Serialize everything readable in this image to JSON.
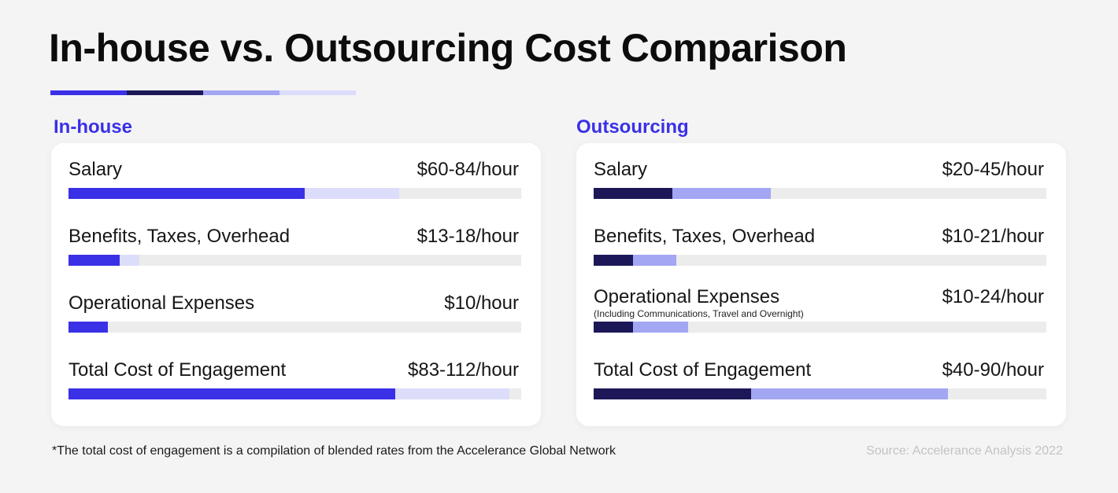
{
  "title": "In-house vs. Outsourcing Cost Comparison",
  "colors": {
    "inhouse_low": "#3a30e6",
    "inhouse_high": "#dcdcfb",
    "outsourcing_low": "#1c1858",
    "outsourcing_high": "#a3a6f3",
    "heading": "#3a30e6",
    "track": "#ececec",
    "rule": [
      "#3a30e6",
      "#1c1858",
      "#a3a6f3",
      "#dcdcfb"
    ]
  },
  "chart_data": [
    {
      "type": "bar",
      "panel": "In-house",
      "scale_max": 115,
      "categories": [
        "Salary",
        "Benefits, Taxes, Overhead",
        "Operational Expenses",
        "Total Cost of Engagement"
      ],
      "labels": [
        "$60-84/hour",
        "$13-18/hour",
        "$10/hour",
        "$83-112/hour"
      ],
      "notes": [
        "",
        "",
        "",
        ""
      ],
      "low": [
        60,
        13,
        10,
        83
      ],
      "high": [
        84,
        18,
        10,
        112
      ]
    },
    {
      "type": "bar",
      "panel": "Outsourcing",
      "scale_max": 115,
      "categories": [
        "Salary",
        "Benefits, Taxes, Overhead",
        "Operational Expenses",
        "Total Cost of Engagement"
      ],
      "labels": [
        "$20-45/hour",
        "$10-21/hour",
        "$10-24/hour",
        "$40-90/hour"
      ],
      "notes": [
        "",
        "",
        "(Including Communications, Travel and Overnight)",
        ""
      ],
      "low": [
        20,
        10,
        10,
        40
      ],
      "high": [
        45,
        21,
        24,
        90
      ]
    }
  ],
  "footnote": "*The total cost of engagement is a compilation of blended rates from the Accelerance Global Network",
  "source": "Source: Accelerance Analysis 2022"
}
